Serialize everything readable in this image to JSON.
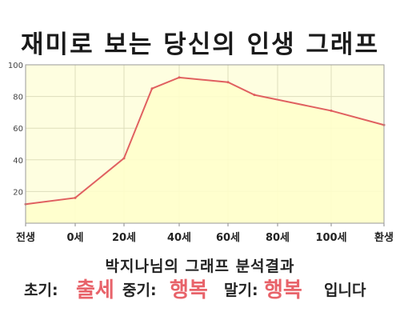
{
  "title": "재미로 보는 당신의 인생 그래프",
  "chart_data": {
    "type": "area",
    "x_tick_labels": [
      "전생",
      "0세",
      "20세",
      "40세",
      "60세",
      "80세",
      "100세",
      "환생"
    ],
    "y_ticks": [
      20,
      40,
      60,
      80,
      100
    ],
    "ylim": [
      0,
      100
    ],
    "grid": true,
    "points": [
      {
        "x": "전생",
        "y": 12
      },
      {
        "x": "0세",
        "y": 16
      },
      {
        "x": "20세",
        "y": 41
      },
      {
        "x": "30세",
        "y": 85
      },
      {
        "x": "40세",
        "y": 92
      },
      {
        "x": "60세",
        "y": 89
      },
      {
        "x": "70세",
        "y": 81
      },
      {
        "x": "100세",
        "y": 71
      },
      {
        "x": "환생",
        "y": 62
      }
    ],
    "colors": {
      "line": "#e06060",
      "fill": "#ffffcc",
      "plot_bg": "#fefee0",
      "grid": "#ddddbb"
    }
  },
  "result": {
    "title": "박지나님의 그래프 분석결과",
    "early_label": "초기:",
    "early_value": "출세",
    "middle_label": "중기:",
    "middle_value": "행복",
    "late_label": "말기:",
    "late_value": "행복",
    "suffix": "입니다",
    "highlight_color": "#e8636a"
  }
}
